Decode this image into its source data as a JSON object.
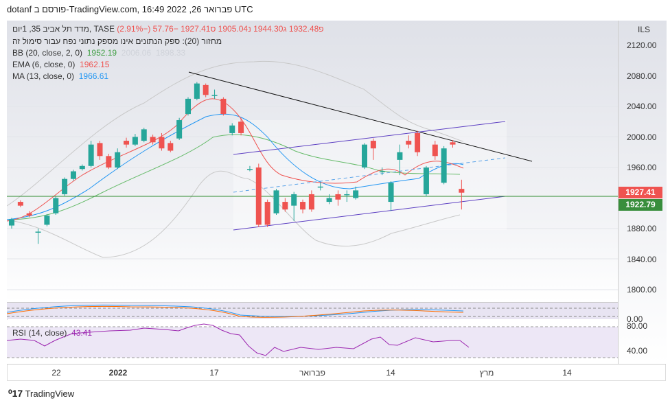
{
  "header": {
    "title": "dotanf פורסם ב-TradingView.com, 16:49 2022 ,26 פברואר UTC"
  },
  "legend": {
    "symbol": "מדד תל אביב 35, 1יום, TASE",
    "open": "פ1932.48",
    "high": "ג1944.30",
    "low": "נ1905.04",
    "close": "ס1927.41",
    "change": "−57.76 (−2.91%)",
    "volume_note": "מחזור (20): ספק הנתונים אינו מספק נתוני נפח עבור סימול זה",
    "bb_label": "BB (20, close, 2, 0)",
    "bb_value": "1952.19",
    "bb_upper": "2006.06",
    "bb_lower": "1898.33",
    "ema_label": "EMA (6, close, 0)",
    "ema_value": "1962.15",
    "ma_label": "MA (13, close, 0)",
    "ma_value": "1966.61",
    "rsi_label": "RSI (14, close)",
    "rsi_value": "43.41"
  },
  "price_scale": {
    "currency": "ILS",
    "ticks": [
      "2120.00",
      "2080.00",
      "2040.00",
      "2000.00",
      "1960.00",
      "1880.00",
      "1840.00",
      "1800.00"
    ],
    "last_price": "1927.41",
    "line_price": "1922.79",
    "osc_tick": "0.00",
    "rsi_ticks": [
      "80.00",
      "40.00"
    ]
  },
  "time_axis": [
    "22",
    "2022",
    "17",
    "פברואר",
    "14",
    "מרץ",
    "14"
  ],
  "footer": {
    "brand": "TradingView"
  },
  "colors": {
    "up": "#26a69a",
    "down": "#ef5350",
    "ema": "#ef5350",
    "ma": "#2196f3",
    "bb": "#43a047"
  },
  "candles": [
    [
      1884,
      1892,
      1880,
      1894
    ],
    [
      1915,
      1910,
      1908,
      1917
    ],
    [
      1900,
      1897,
      1895,
      1903
    ],
    [
      1876,
      1876,
      1860,
      1880
    ],
    [
      1885,
      1897,
      1883,
      1899
    ],
    [
      1900,
      1920,
      1898,
      1922
    ],
    [
      1925,
      1945,
      1923,
      1947
    ],
    [
      1945,
      1955,
      1943,
      1957
    ],
    [
      1958,
      1962,
      1956,
      1964
    ],
    [
      1962,
      1990,
      1960,
      1995
    ],
    [
      1992,
      1975,
      1970,
      1995
    ],
    [
      1975,
      1960,
      1958,
      1978
    ],
    [
      1960,
      1980,
      1958,
      1985
    ],
    [
      1995,
      1990,
      1986,
      1999
    ],
    [
      1990,
      2000,
      1988,
      2004
    ],
    [
      1995,
      2010,
      1993,
      2012
    ],
    [
      2000,
      1993,
      1990,
      2003
    ],
    [
      2000,
      1985,
      1982,
      2005
    ],
    [
      1992,
      1982,
      1980,
      1995
    ],
    [
      1998,
      2022,
      1996,
      2025
    ],
    [
      2030,
      2050,
      2028,
      2052
    ],
    [
      2050,
      2070,
      2048,
      2072
    ],
    [
      2068,
      2055,
      2052,
      2070
    ],
    [
      2055,
      2055,
      2050,
      2062
    ],
    [
      2050,
      2030,
      2028,
      2052
    ],
    [
      2005,
      2015,
      2002,
      2018
    ],
    [
      2020,
      2005,
      2002,
      2025
    ],
    [
      1958,
      1958,
      1955,
      1962
    ],
    [
      1960,
      1885,
      1882,
      1965
    ],
    [
      1915,
      1885,
      1882,
      1918
    ],
    [
      1900,
      1930,
      1898,
      1932
    ],
    [
      1915,
      1905,
      1902,
      1920
    ],
    [
      1910,
      1925,
      1890,
      1928
    ],
    [
      1915,
      1905,
      1900,
      1918
    ],
    [
      1925,
      1905,
      1902,
      1930
    ],
    [
      1935,
      1935,
      1930,
      1940
    ],
    [
      1915,
      1920,
      1912,
      1925
    ],
    [
      1925,
      1918,
      1910,
      1930
    ],
    [
      1925,
      1925,
      1915,
      1930
    ],
    [
      1920,
      1930,
      1918,
      1935
    ],
    [
      1960,
      1990,
      1958,
      1992
    ],
    [
      1995,
      1985,
      1970,
      1998
    ],
    [
      1955,
      1955,
      1950,
      1960
    ],
    [
      1915,
      1940,
      1903,
      1942
    ],
    [
      1970,
      1980,
      1950,
      1990
    ],
    [
      1995,
      1990,
      1985,
      2002
    ],
    [
      2005,
      1980,
      1975,
      2008
    ],
    [
      1925,
      1960,
      1922,
      1962
    ],
    [
      1990,
      1975,
      1970,
      1995
    ],
    [
      1940,
      1985,
      1938,
      1988
    ],
    [
      1993,
      1990,
      1986,
      1996
    ],
    [
      1932,
      1927,
      1905,
      1944
    ]
  ]
}
